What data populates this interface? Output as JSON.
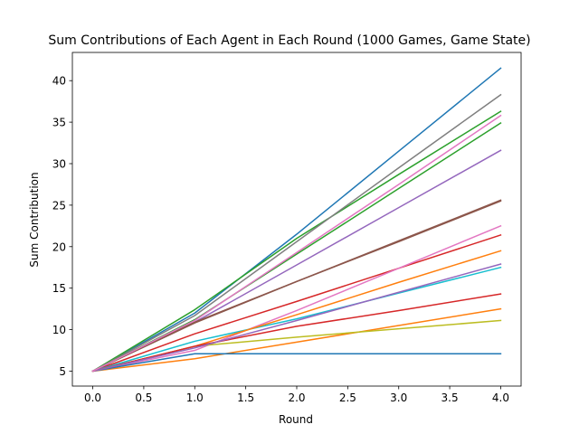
{
  "chart_data": {
    "type": "line",
    "title": "Sum Contributions of Each Agent in Each Round (1000 Games, Game State)",
    "xlabel": "Round",
    "ylabel": "Sum Contribution",
    "x": [
      0,
      1,
      2,
      3,
      4
    ],
    "xlim": [
      -0.2,
      4.2
    ],
    "ylim": [
      3.2,
      43.4
    ],
    "xticks": [
      0.0,
      0.5,
      1.0,
      1.5,
      2.0,
      2.5,
      3.0,
      3.5,
      4.0
    ],
    "xtick_labels": [
      "0.0",
      "0.5",
      "1.0",
      "1.5",
      "2.0",
      "2.5",
      "3.0",
      "3.5",
      "4.0"
    ],
    "yticks": [
      5,
      10,
      15,
      20,
      25,
      30,
      35,
      40
    ],
    "ytick_labels": [
      "5",
      "10",
      "15",
      "20",
      "25",
      "30",
      "35",
      "40"
    ],
    "grid": false,
    "legend": "none",
    "series": [
      {
        "color": "#1f77b4",
        "values": [
          5.0,
          12.0,
          21.5,
          31.5,
          41.5
        ]
      },
      {
        "color": "#ff7f0e",
        "values": [
          5.0,
          6.5,
          8.5,
          10.5,
          12.5
        ]
      },
      {
        "color": "#2ca02c",
        "values": [
          5.0,
          12.4,
          21.0,
          28.7,
          36.3
        ]
      },
      {
        "color": "#d62728",
        "values": [
          5.0,
          9.5,
          13.4,
          17.4,
          21.4
        ]
      },
      {
        "color": "#9467bd",
        "values": [
          5.0,
          10.9,
          17.8,
          24.7,
          31.6
        ]
      },
      {
        "color": "#8c564b",
        "values": [
          5.0,
          10.9,
          15.8,
          20.6,
          25.5
        ]
      },
      {
        "color": "#e377c2",
        "values": [
          5.0,
          7.5,
          12.3,
          17.4,
          22.5
        ]
      },
      {
        "color": "#7f7f7f",
        "values": [
          5.0,
          11.7,
          20.6,
          29.5,
          38.3
        ]
      },
      {
        "color": "#bcbd22",
        "values": [
          5.0,
          8.0,
          9.1,
          10.1,
          11.1
        ]
      },
      {
        "color": "#17becf",
        "values": [
          5.0,
          8.6,
          11.3,
          14.4,
          17.5
        ]
      },
      {
        "color": "#1f77b4",
        "values": [
          5.0,
          7.1,
          7.1,
          7.1,
          7.1
        ]
      },
      {
        "color": "#ff7f0e",
        "values": [
          5.0,
          8.0,
          11.8,
          15.7,
          19.5
        ]
      },
      {
        "color": "#2ca02c",
        "values": [
          5.0,
          11.2,
          19.1,
          27.0,
          34.9
        ]
      },
      {
        "color": "#d62728",
        "values": [
          5.0,
          8.0,
          10.4,
          12.3,
          14.3
        ]
      },
      {
        "color": "#9467bd",
        "values": [
          5.0,
          7.8,
          11.1,
          14.5,
          17.9
        ]
      },
      {
        "color": "#8c564b",
        "values": [
          5.0,
          10.8,
          15.8,
          20.7,
          25.6
        ]
      },
      {
        "color": "#e377c2",
        "values": [
          5.0,
          11.1,
          19.3,
          27.5,
          35.8
        ]
      }
    ]
  }
}
